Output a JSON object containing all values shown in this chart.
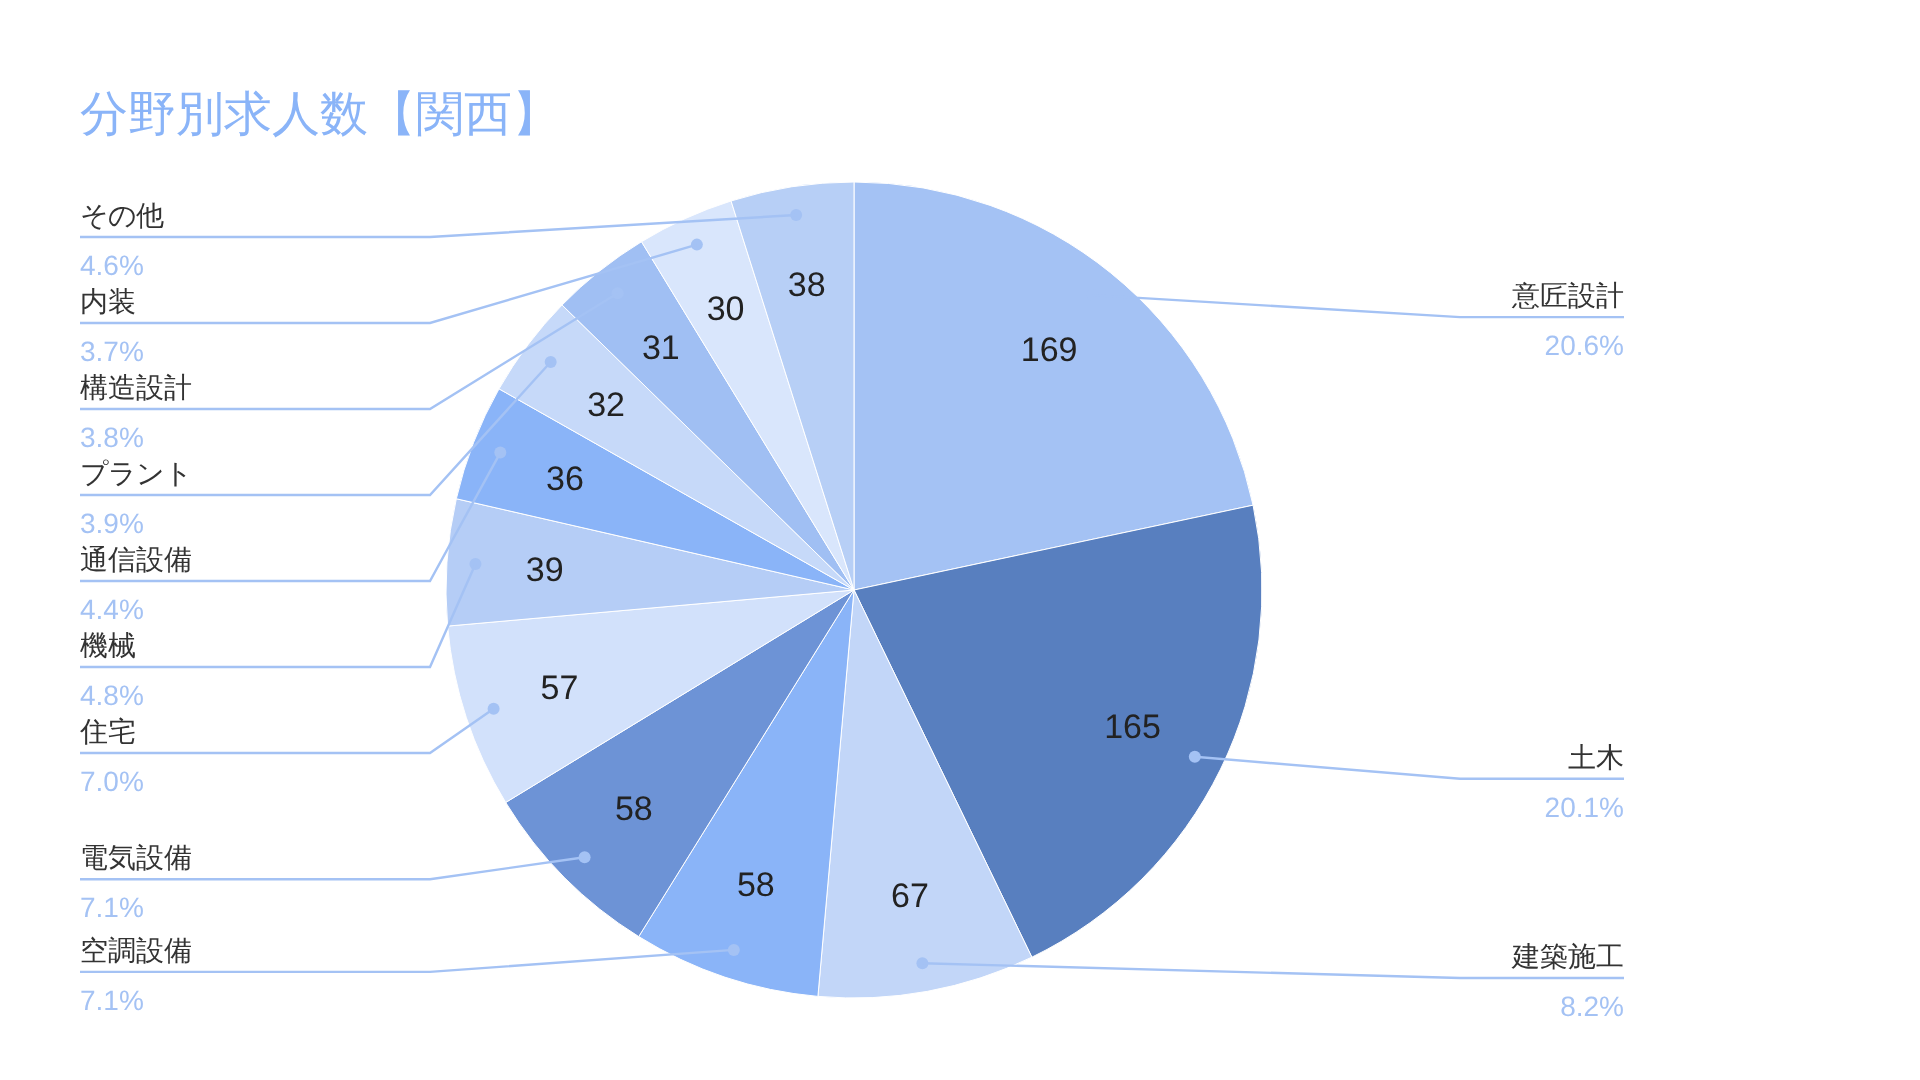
{
  "chart_data": {
    "type": "pie",
    "title": "分野別求人数【関西】",
    "categories": [
      "意匠設計",
      "土木",
      "建築施工",
      "空調設備",
      "電気設備",
      "住宅",
      "機械",
      "通信設備",
      "プラント",
      "構造設計",
      "内装",
      "その他"
    ],
    "values": [
      169,
      165,
      67,
      58,
      58,
      57,
      39,
      36,
      32,
      31,
      30,
      38
    ],
    "colors": [
      "#a4c2f4",
      "#587fbf",
      "#c2d6f8",
      "#8ab4f8",
      "#6d93d6",
      "#d2e1fb",
      "#b5cdf6",
      "#8ab4f8",
      "#c6d9f9",
      "#a0bff3",
      "#d9e6fc",
      "#b7cff6"
    ],
    "data_labels": true,
    "annotations": [
      "20.6%",
      "20.1%",
      "8.2%",
      "7.1%",
      "7.1%",
      "7.0%",
      "4.8%",
      "4.4%",
      "3.9%",
      "3.8%",
      "3.7%",
      "4.6%"
    ]
  }
}
